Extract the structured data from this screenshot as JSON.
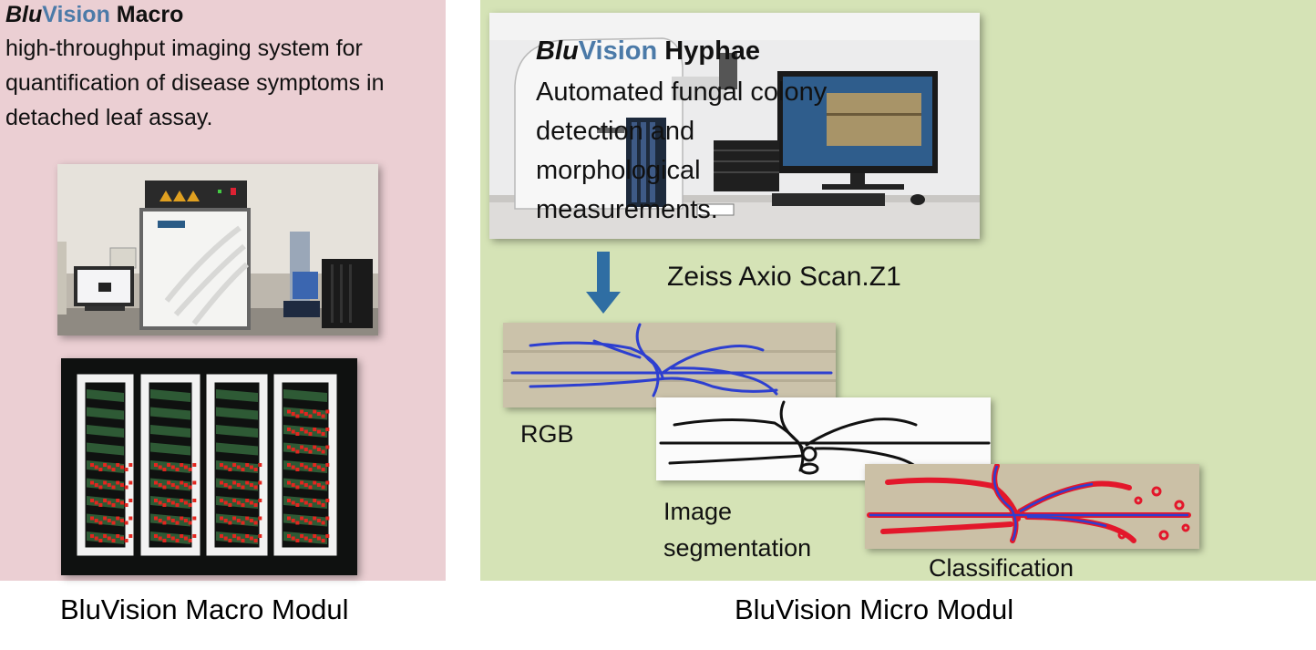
{
  "macro": {
    "title_blu": "Blu",
    "title_vision": "Vision",
    "title_product": "Macro",
    "description": "high-throughput imaging system for quantification of disease symptoms in detached leaf assay.",
    "caption": "BluVision Macro Modul"
  },
  "micro": {
    "title_blu": "Blu",
    "title_vision": "Vision",
    "title_product": "Hyphae",
    "description": "Automated fungal colony detection and morphological measurements.",
    "instrument_label": "Zeiss Axio Scan.Z1",
    "caption": "BluVision Micro Modul",
    "stages": [
      {
        "label": "RGB"
      },
      {
        "label": "Image segmentation"
      },
      {
        "label": "Classification"
      }
    ]
  },
  "colors": {
    "macro_background": "#ebcfd3",
    "micro_background": "#d5e3b6",
    "vision_accent": "#4b7aa8",
    "arrow": "#2f6ea3",
    "hyphae_blue": "#2d3fd0",
    "classification_red": "#e3172b"
  }
}
